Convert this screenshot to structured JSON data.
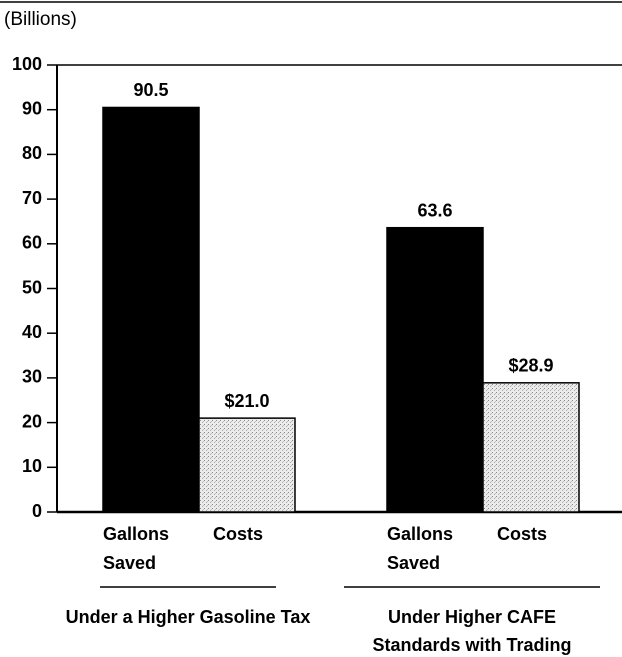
{
  "chart_data": {
    "type": "bar",
    "y_axis_label": "(Billions)",
    "categories": [
      "Under a Higher Gasoline Tax",
      "Under Higher CAFE Standards with Trading"
    ],
    "series": [
      {
        "name": "Gallons Saved",
        "color": "#000000",
        "values": [
          90.5,
          63.6
        ]
      },
      {
        "name": "Costs",
        "color": "#d8d8d8",
        "values": [
          21.0,
          28.9
        ],
        "value_labels": [
          "$21.0",
          "$28.9"
        ]
      }
    ],
    "ylim": [
      0,
      100
    ],
    "yticks": [
      0,
      10,
      20,
      30,
      40,
      50,
      60,
      70,
      80,
      90,
      100
    ],
    "grid": false
  }
}
